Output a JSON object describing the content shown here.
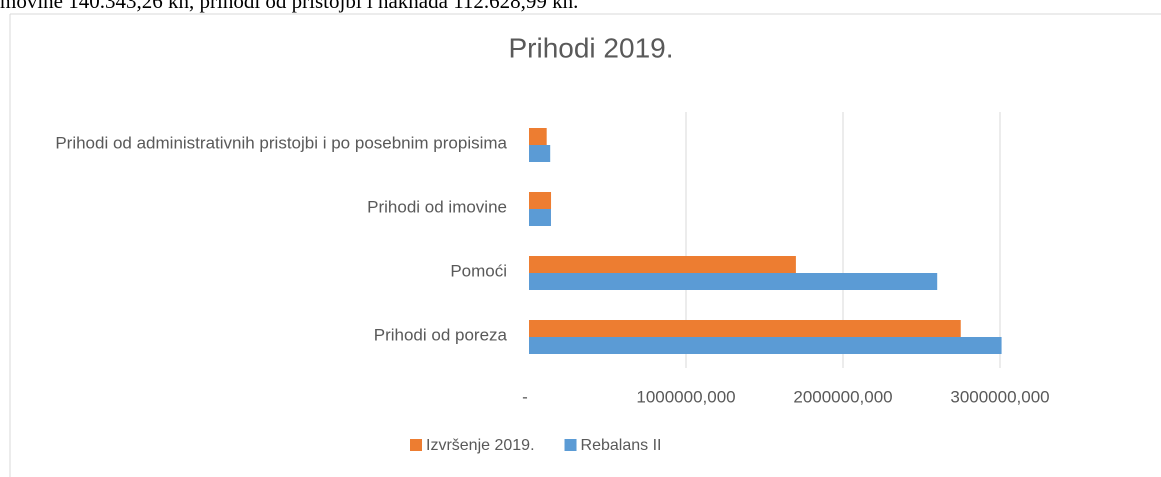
{
  "document_text": "movine 140.343,26 kn, prihodi od pristojbi i naknada 112.628,99 kn.",
  "chart_data": {
    "type": "hbar",
    "title": "Prihodi 2019.",
    "categories": [
      "Prihodi od poreza",
      "Pomoći",
      "Prihodi od imovine",
      "Prihodi od administrativnih pristojbi i po posebnim propisima"
    ],
    "series": [
      {
        "name": "Izvršenje 2019.",
        "color": "#ed7d31",
        "values": [
          2750000,
          1700000,
          140343,
          112629
        ]
      },
      {
        "name": "Rebalans II",
        "color": "#5b9bd5",
        "values": [
          3010000,
          2600000,
          140000,
          135000
        ]
      }
    ],
    "xlim": [
      0,
      4000000
    ],
    "xticks": [
      {
        "value": 0,
        "label": "-"
      },
      {
        "value": 1000000,
        "label": "1000000,000"
      },
      {
        "value": 2000000,
        "label": "2000000,000"
      },
      {
        "value": 3000000,
        "label": "3000000,000"
      }
    ],
    "grid": true,
    "legend": "bottom"
  }
}
